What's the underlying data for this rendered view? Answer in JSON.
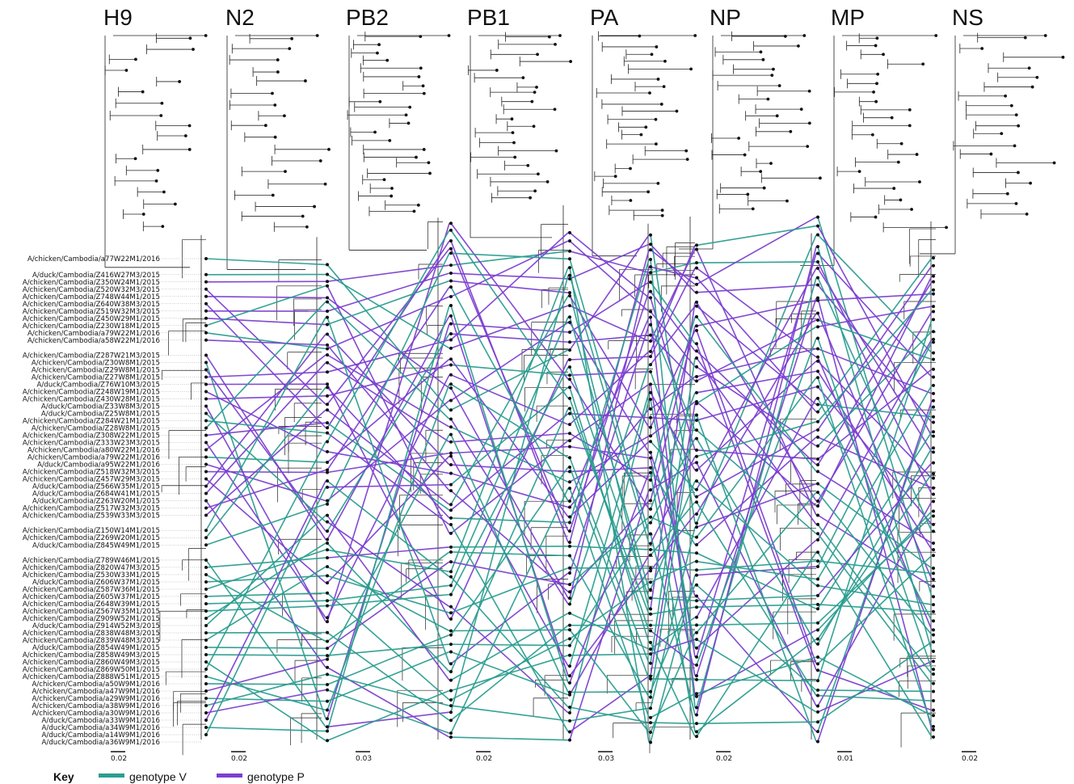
{
  "segments": [
    "H9",
    "N2",
    "PB2",
    "PB1",
    "PA",
    "NP",
    "MP",
    "NS"
  ],
  "scale_bars": [
    "0.02",
    "0.02",
    "0.03",
    "0.02",
    "0.03",
    "0.02",
    "0.01",
    "0.02"
  ],
  "key": {
    "title": "Key",
    "items": [
      {
        "label": "genotype V",
        "color": "#2a9d8f"
      },
      {
        "label": "genotype P",
        "color": "#7b3fd0"
      }
    ]
  },
  "taxa": [
    "A/chicken/Cambodia/a77W22M1/2016",
    "A/duck/Cambodia/Z416W27M3/2015",
    "A/chicken/Cambodia/Z350W24M1/2015",
    "A/chicken/Cambodia/Z520W32M3/2015",
    "A/chicken/Cambodia/Z748W44M1/2015",
    "A/chicken/Cambodia/Z640W38M3/2015",
    "A/chicken/Cambodia/Z519W32M3/2015",
    "A/chicken/Cambodia/Z450W29M1/2015",
    "A/chicken/Cambodia/Z230W18M1/2015",
    "A/chicken/Cambodia/a79W22M1/2016",
    "A/chicken/Cambodia/a58W22M1/2016",
    "A/chicken/Cambodia/Z287W21M3/2015",
    "A/chicken/Cambodia/Z30W8M1/2015",
    "A/chicken/Cambodia/Z29W8M1/2015",
    "A/chicken/Cambodia/Z27W8M1/2015",
    "A/duck/Cambodia/Z76W10M3/2015",
    "A/chicken/Cambodia/Z248W19M1/2015",
    "A/chicken/Cambodia/Z430W28M1/2015",
    "A/duck/Cambodia/Z33W8M3/2015",
    "A/duck/Cambodia/Z25W8M1/2015",
    "A/chicken/Cambodia/Z284W21M1/2015",
    "A/chicken/Cambodia/Z28W8M1/2015",
    "A/chicken/Cambodia/Z308W22M1/2015",
    "A/chicken/Cambodia/Z333W23M3/2015",
    "A/chicken/Cambodia/a80W22M1/2016",
    "A/chicken/Cambodia/a79W22M1/2016",
    "A/duck/Cambodia/a95W22M1/2016",
    "A/chicken/Cambodia/Z518W32M3/2015",
    "A/chicken/Cambodia/Z457W29M3/2015",
    "A/duck/Cambodia/Z566W35M1/2015",
    "A/duck/Cambodia/Z684W41M1/2015",
    "A/duck/Cambodia/Z263W20M1/2015",
    "A/chicken/Cambodia/Z517W32M3/2015",
    "A/chicken/Cambodia/Z539W33M3/2015",
    "A/chicken/Cambodia/Z150W14M1/2015",
    "A/chicken/Cambodia/Z269W20M1/2015",
    "A/duck/Cambodia/Z845W49M1/2015",
    "A/chicken/Cambodia/Z789W46M1/2015",
    "A/chicken/Cambodia/Z820W47M3/2015",
    "A/chicken/Cambodia/Z530W33M1/2015",
    "A/duck/Cambodia/Z606W37M1/2015",
    "A/chicken/Cambodia/Z587W36M1/2015",
    "A/chicken/Cambodia/Z605W37M1/2015",
    "A/chicken/Cambodia/Z648W39M1/2015",
    "A/chicken/Cambodia/Z567W35M1/2015",
    "A/chicken/Cambodia/Z909W52M1/2015",
    "A/duck/Cambodia/Z914W52M3/2015",
    "A/chicken/Cambodia/Z838W48M3/2015",
    "A/chicken/Cambodia/Z839W48M3/2015",
    "A/duck/Cambodia/Z854W49M1/2015",
    "A/chicken/Cambodia/Z858W49M3/2015",
    "A/chicken/Cambodia/Z860W49M3/2015",
    "A/chicken/Cambodia/Z869W50M1/2015",
    "A/chicken/Cambodia/Z888W51M1/2015",
    "A/chicken/Cambodia/a50W9M1/2016",
    "A/chicken/Cambodia/a47W9M1/2016",
    "A/chicken/Cambodia/a29W9M1/2016",
    "A/chicken/Cambodia/a38W9M1/2016",
    "A/chicken/Cambodia/a30W9M1/2016",
    "A/duck/Cambodia/a33W9M1/2016",
    "A/duck/Cambodia/a34W9M1/2016",
    "A/duck/Cambodia/a14W9M1/2016",
    "A/duck/Cambodia/a36W9M1/2016"
  ]
}
